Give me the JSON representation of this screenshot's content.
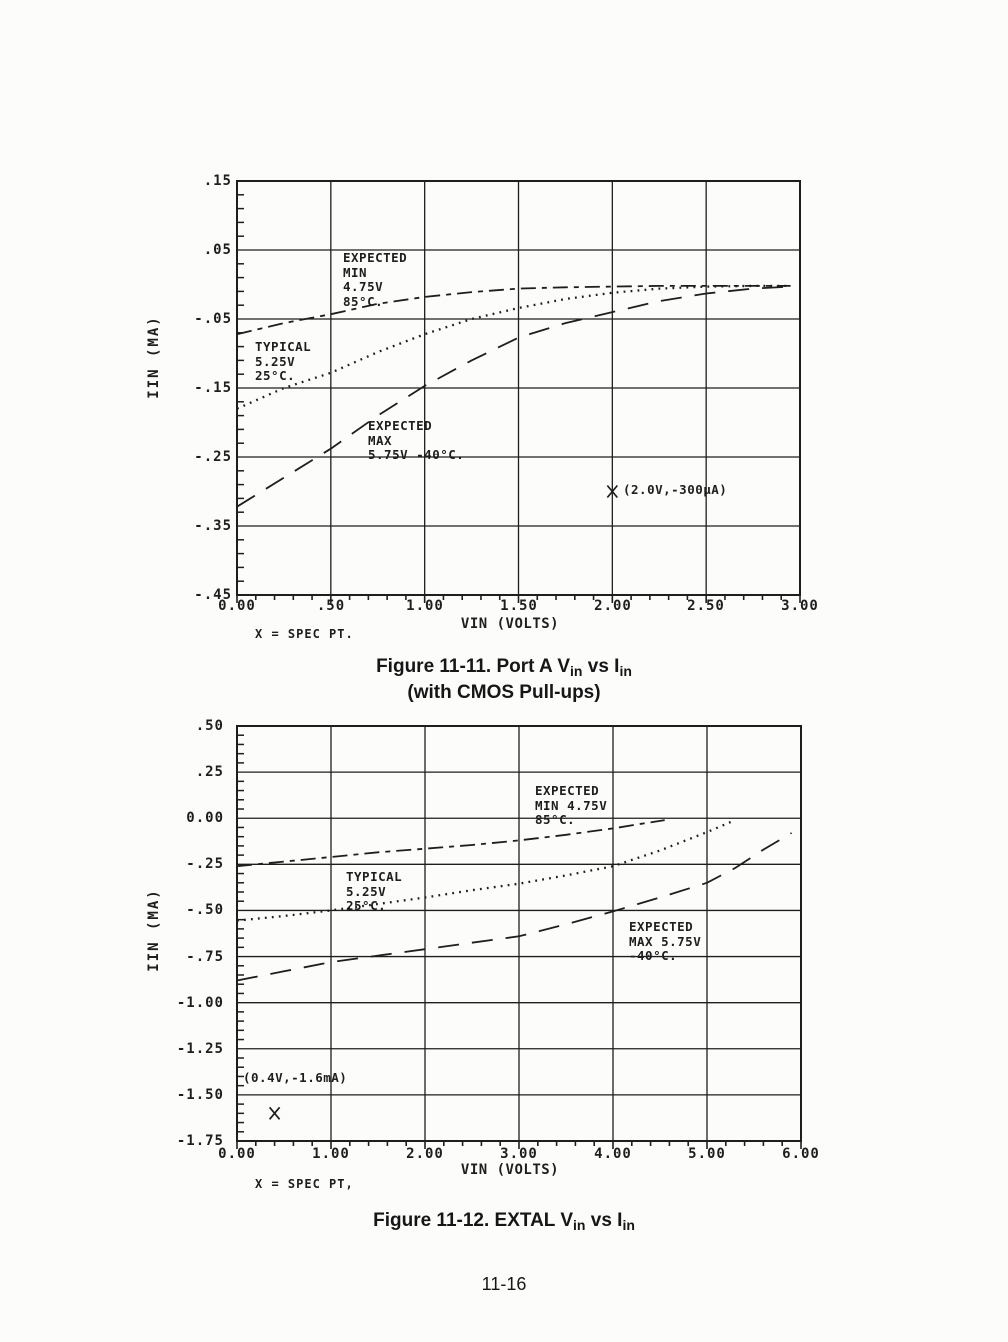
{
  "page": {
    "number": "11-16"
  },
  "figure1": {
    "y_axis_label": "IIN (MA)",
    "x_axis_label": "VIN (VOLTS)",
    "note": "X = SPEC PT.",
    "annotations": {
      "expected_min": "EXPECTED\nMIN\n4.75V\n85°C.",
      "typical": "TYPICAL\n5.25V\n25°C.",
      "expected_max": "EXPECTED\nMAX\n5.75V -40°C.",
      "spec_label": "(2.0V,-300µA)"
    },
    "caption": {
      "part1": "Figure 11-11. Port A V",
      "sub1": "in",
      "part2": " vs I",
      "sub2": "in",
      "line2": "(with CMOS Pull-ups)"
    }
  },
  "figure2": {
    "y_axis_label": "IIN (MA)",
    "x_axis_label": "VIN (VOLTS)",
    "note": "X = SPEC PT,",
    "annotations": {
      "expected_min": "EXPECTED\nMIN 4.75V\n85°C.",
      "typical": "TYPICAL\n5.25V\n25°C.",
      "expected_max": "EXPECTED\nMAX 5.75V\n-40°C.",
      "spec_label": "(0.4V,-1.6mA)"
    },
    "caption": {
      "part1": "Figure 11-12. EXTAL V",
      "sub1": "in",
      "part2": " vs I",
      "sub2": "in"
    }
  },
  "chart_data": [
    {
      "type": "line",
      "title": "Figure 11-11. Port A Vin vs Iin (with CMOS Pull-ups)",
      "xlabel": "VIN (VOLTS)",
      "ylabel": "IIN (MA)",
      "xlim": [
        0,
        3
      ],
      "ylim": [
        -0.45,
        0.15
      ],
      "grid": true,
      "x_ticks": [
        0,
        0.5,
        1.0,
        1.5,
        2.0,
        2.5,
        3.0
      ],
      "x_tick_labels": [
        "0.00",
        ".50",
        "1.00",
        "1.50",
        "2.00",
        "2.50",
        "3.00"
      ],
      "y_ticks": [
        0.15,
        0.05,
        -0.05,
        -0.15,
        -0.25,
        -0.35,
        -0.45
      ],
      "y_tick_labels": [
        ".15",
        ".05",
        "-.05",
        "-.15",
        "-.25",
        "-.35",
        "-.45"
      ],
      "x_minor_step": 0.1,
      "y_minor_step": 0.02,
      "series": [
        {
          "key": "expected_min",
          "name": "EXPECTED MIN 4.75V 85°C.",
          "style": "dashdot",
          "x": [
            0,
            0.25,
            0.5,
            0.75,
            1.0,
            1.25,
            1.5,
            1.75,
            2.0,
            2.25,
            2.5,
            2.75,
            2.95
          ],
          "y": [
            -0.072,
            -0.056,
            -0.043,
            -0.028,
            -0.018,
            -0.011,
            -0.006,
            -0.004,
            -0.003,
            -0.002,
            -0.002,
            -0.002,
            -0.002
          ]
        },
        {
          "key": "typical",
          "name": "TYPICAL 5.25V 25°C.",
          "style": "dotted",
          "x": [
            0,
            0.25,
            0.5,
            0.75,
            1.0,
            1.25,
            1.5,
            1.75,
            2.0,
            2.25,
            2.5,
            2.75,
            2.95
          ],
          "y": [
            -0.18,
            -0.15,
            -0.128,
            -0.098,
            -0.072,
            -0.05,
            -0.034,
            -0.021,
            -0.012,
            -0.006,
            -0.003,
            -0.002,
            -0.002
          ]
        },
        {
          "key": "expected_max",
          "name": "EXPECTED MAX 5.75V -40°C.",
          "style": "longdash",
          "x": [
            0,
            0.25,
            0.5,
            0.75,
            1.0,
            1.25,
            1.5,
            1.75,
            2.0,
            2.25,
            2.5,
            2.75,
            2.95
          ],
          "y": [
            -0.322,
            -0.28,
            -0.238,
            -0.19,
            -0.147,
            -0.11,
            -0.077,
            -0.056,
            -0.04,
            -0.024,
            -0.013,
            -0.006,
            -0.003
          ]
        }
      ],
      "spec_point": {
        "x": 2.0,
        "y": -0.3,
        "label": "(2.0V,-300µA)"
      }
    },
    {
      "type": "line",
      "title": "Figure 11-12. EXTAL Vin vs Iin",
      "xlabel": "VIN (VOLTS)",
      "ylabel": "IIN (MA)",
      "xlim": [
        0,
        6
      ],
      "ylim": [
        -1.75,
        0.5
      ],
      "grid": true,
      "x_ticks": [
        0,
        1,
        2,
        3,
        4,
        5,
        6
      ],
      "x_tick_labels": [
        "0.00",
        "1.00",
        "2.00",
        "3.00",
        "4.00",
        "5.00",
        "6.00"
      ],
      "y_ticks": [
        0.5,
        0.25,
        0.0,
        -0.25,
        -0.5,
        -0.75,
        -1.0,
        -1.25,
        -1.5,
        -1.75
      ],
      "y_tick_labels": [
        ".50",
        ".25",
        "0.00",
        "-.25",
        "-.50",
        "-.75",
        "-1.00",
        "-1.25",
        "-1.50",
        "-1.75"
      ],
      "x_minor_step": 0.2,
      "y_minor_step": 0.05,
      "series": [
        {
          "key": "expected_min",
          "name": "EXPECTED MIN 4.75V 85°C.",
          "style": "dashdot",
          "x": [
            0,
            0.5,
            1.0,
            1.5,
            2.0,
            2.5,
            3.0,
            3.5,
            4.0,
            4.3,
            4.55
          ],
          "y": [
            -0.26,
            -0.235,
            -0.21,
            -0.185,
            -0.165,
            -0.145,
            -0.12,
            -0.09,
            -0.055,
            -0.03,
            -0.01
          ]
        },
        {
          "key": "typical",
          "name": "TYPICAL 5.25V 25°C.",
          "style": "dotted",
          "x": [
            0,
            0.5,
            1.0,
            1.5,
            2.0,
            2.5,
            3.0,
            3.5,
            4.0,
            4.5,
            5.0,
            5.3
          ],
          "y": [
            -0.555,
            -0.53,
            -0.5,
            -0.465,
            -0.43,
            -0.39,
            -0.355,
            -0.31,
            -0.26,
            -0.175,
            -0.075,
            -0.01
          ]
        },
        {
          "key": "expected_max",
          "name": "EXPECTED MAX 5.75V -40°C.",
          "style": "longdash",
          "x": [
            0,
            0.5,
            1.0,
            1.5,
            2.0,
            2.5,
            3.0,
            3.5,
            4.0,
            4.5,
            5.0,
            5.3,
            5.6,
            5.9
          ],
          "y": [
            -0.88,
            -0.83,
            -0.78,
            -0.745,
            -0.71,
            -0.675,
            -0.64,
            -0.575,
            -0.505,
            -0.43,
            -0.35,
            -0.27,
            -0.17,
            -0.08
          ]
        }
      ],
      "spec_point": {
        "x": 0.4,
        "y": -1.6,
        "label": "(0.4V,-1.6mA)"
      }
    }
  ]
}
